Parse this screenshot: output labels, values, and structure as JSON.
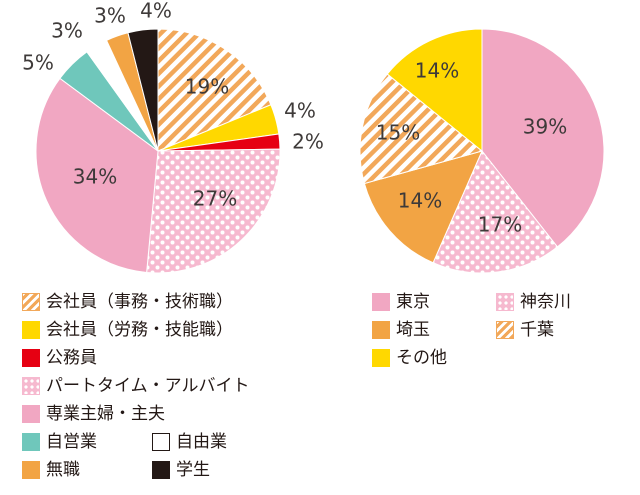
{
  "chart_data": [
    {
      "type": "pie",
      "title": "",
      "slices": [
        {
          "label": "会社員（事務・技術職）",
          "value": 19,
          "label_text": "19%",
          "fill": "stripe"
        },
        {
          "label": "会社員（労務・技能職）",
          "value": 4,
          "label_text": "4%",
          "fill": "yellow"
        },
        {
          "label": "公務員",
          "value": 2,
          "label_text": "2%",
          "fill": "red"
        },
        {
          "label": "パートタイム・アルバイト",
          "value": 27,
          "label_text": "27%",
          "fill": "dots"
        },
        {
          "label": "専業主婦・主夫",
          "value": 34,
          "label_text": "34%",
          "fill": "pink"
        },
        {
          "label": "自営業",
          "value": 5,
          "label_text": "5%",
          "fill": "teal"
        },
        {
          "label": "自由業",
          "value": 3,
          "label_text": "3%",
          "fill": "white"
        },
        {
          "label": "無職",
          "value": 3,
          "label_text": "3%",
          "fill": "orange"
        },
        {
          "label": "学生",
          "value": 4,
          "label_text": "4%",
          "fill": "black"
        }
      ],
      "legend_position": "bottom"
    },
    {
      "type": "pie",
      "title": "",
      "slices": [
        {
          "label": "東京",
          "value": 39,
          "label_text": "39%",
          "fill": "pink"
        },
        {
          "label": "神奈川",
          "value": 17,
          "label_text": "17%",
          "fill": "dots"
        },
        {
          "label": "埼玉",
          "value": 14,
          "label_text": "14%",
          "fill": "orange"
        },
        {
          "label": "千葉",
          "value": 15,
          "label_text": "15%",
          "fill": "stripe"
        },
        {
          "label": "その他",
          "value": 14,
          "label_text": "14%",
          "fill": "yellow"
        }
      ],
      "legend_position": "bottom"
    }
  ],
  "legend_left": [
    {
      "label": "会社員（事務・技術職）",
      "fill": "stripe"
    },
    {
      "label": "会社員（労務・技能職）",
      "fill": "yellow"
    },
    {
      "label": "公務員",
      "fill": "red"
    },
    {
      "label": "パートタイム・アルバイト",
      "fill": "dots"
    },
    {
      "label": "専業主婦・主夫",
      "fill": "pink"
    },
    {
      "label": "自営業",
      "fill": "teal"
    },
    {
      "label": "自由業",
      "fill": "white"
    },
    {
      "label": "無職",
      "fill": "orange"
    },
    {
      "label": "学生",
      "fill": "black"
    }
  ],
  "legend_right": [
    {
      "label": "東京",
      "fill": "pink"
    },
    {
      "label": "神奈川",
      "fill": "dots"
    },
    {
      "label": "埼玉",
      "fill": "orange"
    },
    {
      "label": "千葉",
      "fill": "stripe"
    },
    {
      "label": "その他",
      "fill": "yellow"
    }
  ],
  "colors": {
    "stripe": "#f2a85a",
    "yellow": "#ffd800",
    "red": "#e60012",
    "dots": "#f6b9cf",
    "pink": "#f1a7c2",
    "teal": "#6fc7bb",
    "white": "#ffffff",
    "orange": "#f2a444",
    "black": "#231815"
  }
}
